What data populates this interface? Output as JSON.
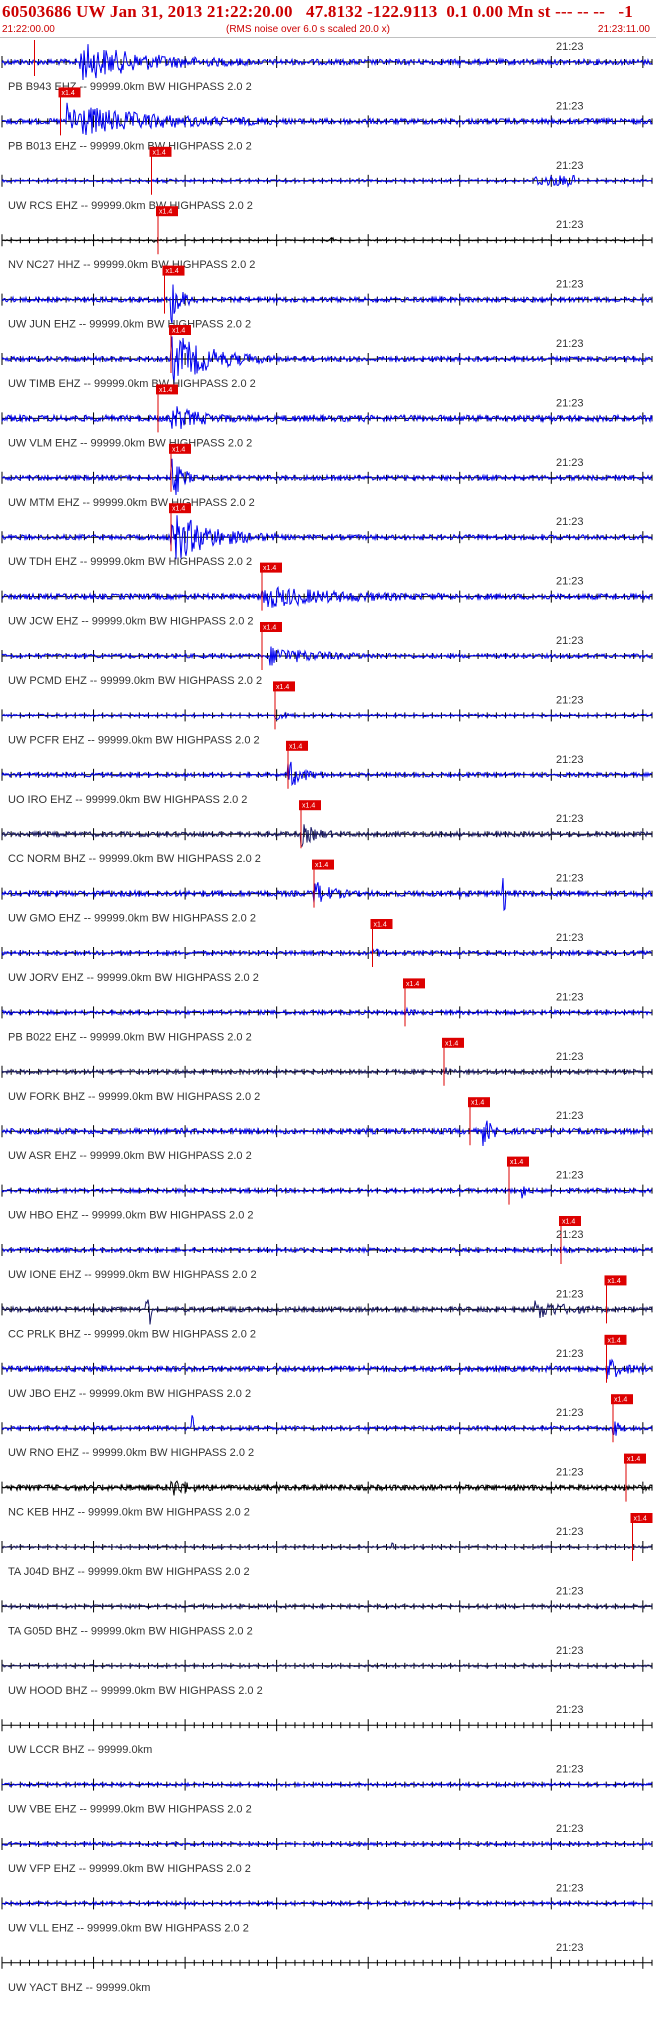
{
  "header": {
    "title": "60503686 UW Jan 31, 2013 21:22:20.00   47.8132 -122.9113  0.1 0.00 Mn st --- -- --   -1",
    "start_time": "21:22:00.00",
    "rms_note": "(RMS noise over 6.0 s scaled 20.0 x)",
    "end_time": "21:23:11.00"
  },
  "minute_label": "21:23",
  "pick_label": "x1.4",
  "colors": {
    "trace_blue": "#0000ee",
    "trace_dark": "#1a1a66",
    "trace_black": "#000000",
    "pick": "#dd0000",
    "axis": "#000000",
    "header_text": "#cc0000"
  },
  "traces": [
    {
      "label": "PB B943 EHZ -- 99999.0km BW  HIGHPASS  2.0  2",
      "color": "blue",
      "pick": 0.05,
      "burst": [
        0.12,
        0.38,
        3.2
      ],
      "amp": 0.35
    },
    {
      "label": "PB B013 EHZ -- 99999.0km BW  HIGHPASS  2.0  2",
      "color": "blue",
      "pick": 0.09,
      "burst": [
        0.1,
        0.42,
        3.0
      ],
      "amp": 0.35
    },
    {
      "label": "UW RCS EHZ -- 99999.0km BW  HIGHPASS  2.0  2",
      "color": "blue",
      "pick": 0.23,
      "burst": [
        0.23,
        0.26,
        2.5
      ],
      "amp": 0.15,
      "extra": [
        0.82,
        0.88,
        1.8
      ]
    },
    {
      "label": "NV NC27 HHZ -- 99999.0km BW  HIGHPASS  2.0  2",
      "color": "black",
      "pick": 0.24,
      "burst": [
        0.23,
        0.25,
        2.0
      ],
      "amp": 0.08,
      "extra": [
        0.5,
        0.51,
        2.0
      ]
    },
    {
      "label": "UW JUN EHZ -- 99999.0km BW  HIGHPASS  2.0  2",
      "color": "blue",
      "pick": 0.25,
      "burst": [
        0.26,
        0.3,
        5.0
      ],
      "amp": 0.3
    },
    {
      "label": "UW TIMB EHZ -- 99999.0km BW  HIGHPASS  2.0  2",
      "color": "blue",
      "pick": 0.26,
      "burst": [
        0.26,
        0.42,
        5.5
      ],
      "amp": 0.3
    },
    {
      "label": "UW VLM EHZ -- 99999.0km BW  HIGHPASS  2.0  2",
      "color": "blue",
      "pick": 0.24,
      "burst": [
        0.26,
        0.36,
        2.0
      ],
      "amp": 0.4
    },
    {
      "label": "UW MTM EHZ -- 99999.0km BW  HIGHPASS  2.0  2",
      "color": "blue",
      "pick": 0.26,
      "burst": [
        0.26,
        0.3,
        5.5
      ],
      "amp": 0.3
    },
    {
      "label": "UW TDH EHZ -- 99999.0km BW  HIGHPASS  2.0  2",
      "color": "blue",
      "pick": 0.26,
      "burst": [
        0.26,
        0.42,
        5.5
      ],
      "amp": 0.3
    },
    {
      "label": "UW JCW EHZ -- 99999.0km BW  HIGHPASS  2.0  2",
      "color": "blue",
      "pick": 0.4,
      "burst": [
        0.4,
        0.68,
        1.8
      ],
      "amp": 0.35
    },
    {
      "label": "UW PCMD EHZ -- 99999.0km BW  HIGHPASS  2.0  2",
      "color": "blue",
      "pick": 0.4,
      "burst": [
        0.41,
        0.6,
        2.2
      ],
      "amp": 0.25
    },
    {
      "label": "UW PCFR EHZ -- 99999.0km BW  HIGHPASS  2.0  2",
      "color": "blue",
      "pick": 0.42,
      "burst": [
        0.42,
        0.46,
        1.6
      ],
      "amp": 0.15
    },
    {
      "label": "UO IRO EHZ -- 99999.0km BW  HIGHPASS  2.0  2",
      "color": "blue",
      "pick": 0.44,
      "burst": [
        0.44,
        0.5,
        3.5
      ],
      "amp": 0.25
    },
    {
      "label": "CC NORM BHZ -- 99999.0km BW  HIGHPASS  2.0  2",
      "color": "dark",
      "pick": 0.46,
      "burst": [
        0.46,
        0.52,
        2.2
      ],
      "amp": 0.3
    },
    {
      "label": "UW GMO EHZ -- 99999.0km BW  HIGHPASS  2.0  2",
      "color": "blue",
      "pick": 0.48,
      "burst": [
        0.48,
        0.54,
        2.2
      ],
      "amp": 0.35,
      "extra": [
        0.77,
        0.775,
        3.0
      ]
    },
    {
      "label": "UW JORV EHZ -- 99999.0km BW  HIGHPASS  2.0  2",
      "color": "blue",
      "pick": 0.57,
      "burst": [
        0.57,
        0.6,
        1.2
      ],
      "amp": 0.25
    },
    {
      "label": "PB B022 EHZ -- 99999.0km BW  HIGHPASS  2.0  2",
      "color": "blue",
      "pick": 0.62,
      "burst": [
        0.62,
        0.64,
        1.1
      ],
      "amp": 0.25
    },
    {
      "label": "UW FORK BHZ -- 99999.0km BW  HIGHPASS  2.0  2",
      "color": "dark",
      "pick": 0.68,
      "burst": [
        0.68,
        0.7,
        1.1
      ],
      "amp": 0.25
    },
    {
      "label": "UW ASR EHZ -- 99999.0km BW  HIGHPASS  2.0  2",
      "color": "blue",
      "pick": 0.72,
      "burst": [
        0.74,
        0.78,
        2.2
      ],
      "amp": 0.35
    },
    {
      "label": "UW HBO EHZ -- 99999.0km BW  HIGHPASS  2.0  2",
      "color": "blue",
      "pick": 0.78,
      "burst": [
        0.8,
        0.82,
        1.5
      ],
      "amp": 0.25
    },
    {
      "label": "UW IONE EHZ -- 99999.0km BW  HIGHPASS  2.0  2",
      "color": "blue",
      "pick": 0.86,
      "burst": [
        0.86,
        0.88,
        1.2
      ],
      "amp": 0.25
    },
    {
      "label": "CC PRLK BHZ -- 99999.0km BW  HIGHPASS  2.0  2",
      "color": "dark",
      "pick": 0.93,
      "burst": [
        0.82,
        0.94,
        1.8
      ],
      "amp": 0.3,
      "extra": [
        0.22,
        0.23,
        3.0
      ]
    },
    {
      "label": "UW JBO EHZ -- 99999.0km BW  HIGHPASS  2.0  2",
      "color": "blue",
      "pick": 0.93,
      "burst": [
        0.93,
        0.99,
        2.0
      ],
      "amp": 0.35
    },
    {
      "label": "UW RNO EHZ -- 99999.0km BW  HIGHPASS  2.0  2",
      "color": "blue",
      "pick": 0.94,
      "burst": [
        0.94,
        0.96,
        3.0
      ],
      "amp": 0.25,
      "extra": [
        0.29,
        0.295,
        3.0
      ]
    },
    {
      "label": "NC KEB HHZ -- 99999.0km BW  HIGHPASS  2.0  2",
      "color": "black",
      "pick": 0.96,
      "burst": [
        0.26,
        0.32,
        1.6
      ],
      "amp": 0.35
    },
    {
      "label": "TA J04D BHZ -- 99999.0km BW  HIGHPASS  2.0  2",
      "color": "dark",
      "pick": 0.97,
      "burst": [
        0.6,
        0.61,
        2.0
      ],
      "amp": 0.15
    },
    {
      "label": "TA G05D BHZ -- 99999.0km BW  HIGHPASS  2.0  2",
      "color": "dark",
      "pick": null,
      "burst": null,
      "amp": 0.2
    },
    {
      "label": "UW HOOD BHZ -- 99999.0km BW  HIGHPASS  2.0  2",
      "color": "dark",
      "pick": null,
      "burst": null,
      "amp": 0.15
    },
    {
      "label": "UW LCCR BHZ -- 99999.0km",
      "color": "none",
      "pick": null,
      "burst": null,
      "amp": 0.0
    },
    {
      "label": "UW VBE EHZ -- 99999.0km BW  HIGHPASS  2.0  2",
      "color": "blue",
      "pick": null,
      "burst": null,
      "amp": 0.2
    },
    {
      "label": "UW VFP EHZ -- 99999.0km BW  HIGHPASS  2.0  2",
      "color": "blue",
      "pick": null,
      "burst": null,
      "amp": 0.2
    },
    {
      "label": "UW VLL EHZ -- 99999.0km BW  HIGHPASS  2.0  2",
      "color": "blue",
      "pick": null,
      "burst": null,
      "amp": 0.2
    },
    {
      "label": "UW YACT BHZ -- 99999.0km",
      "color": "none",
      "pick": null,
      "burst": null,
      "amp": 0.0
    }
  ]
}
